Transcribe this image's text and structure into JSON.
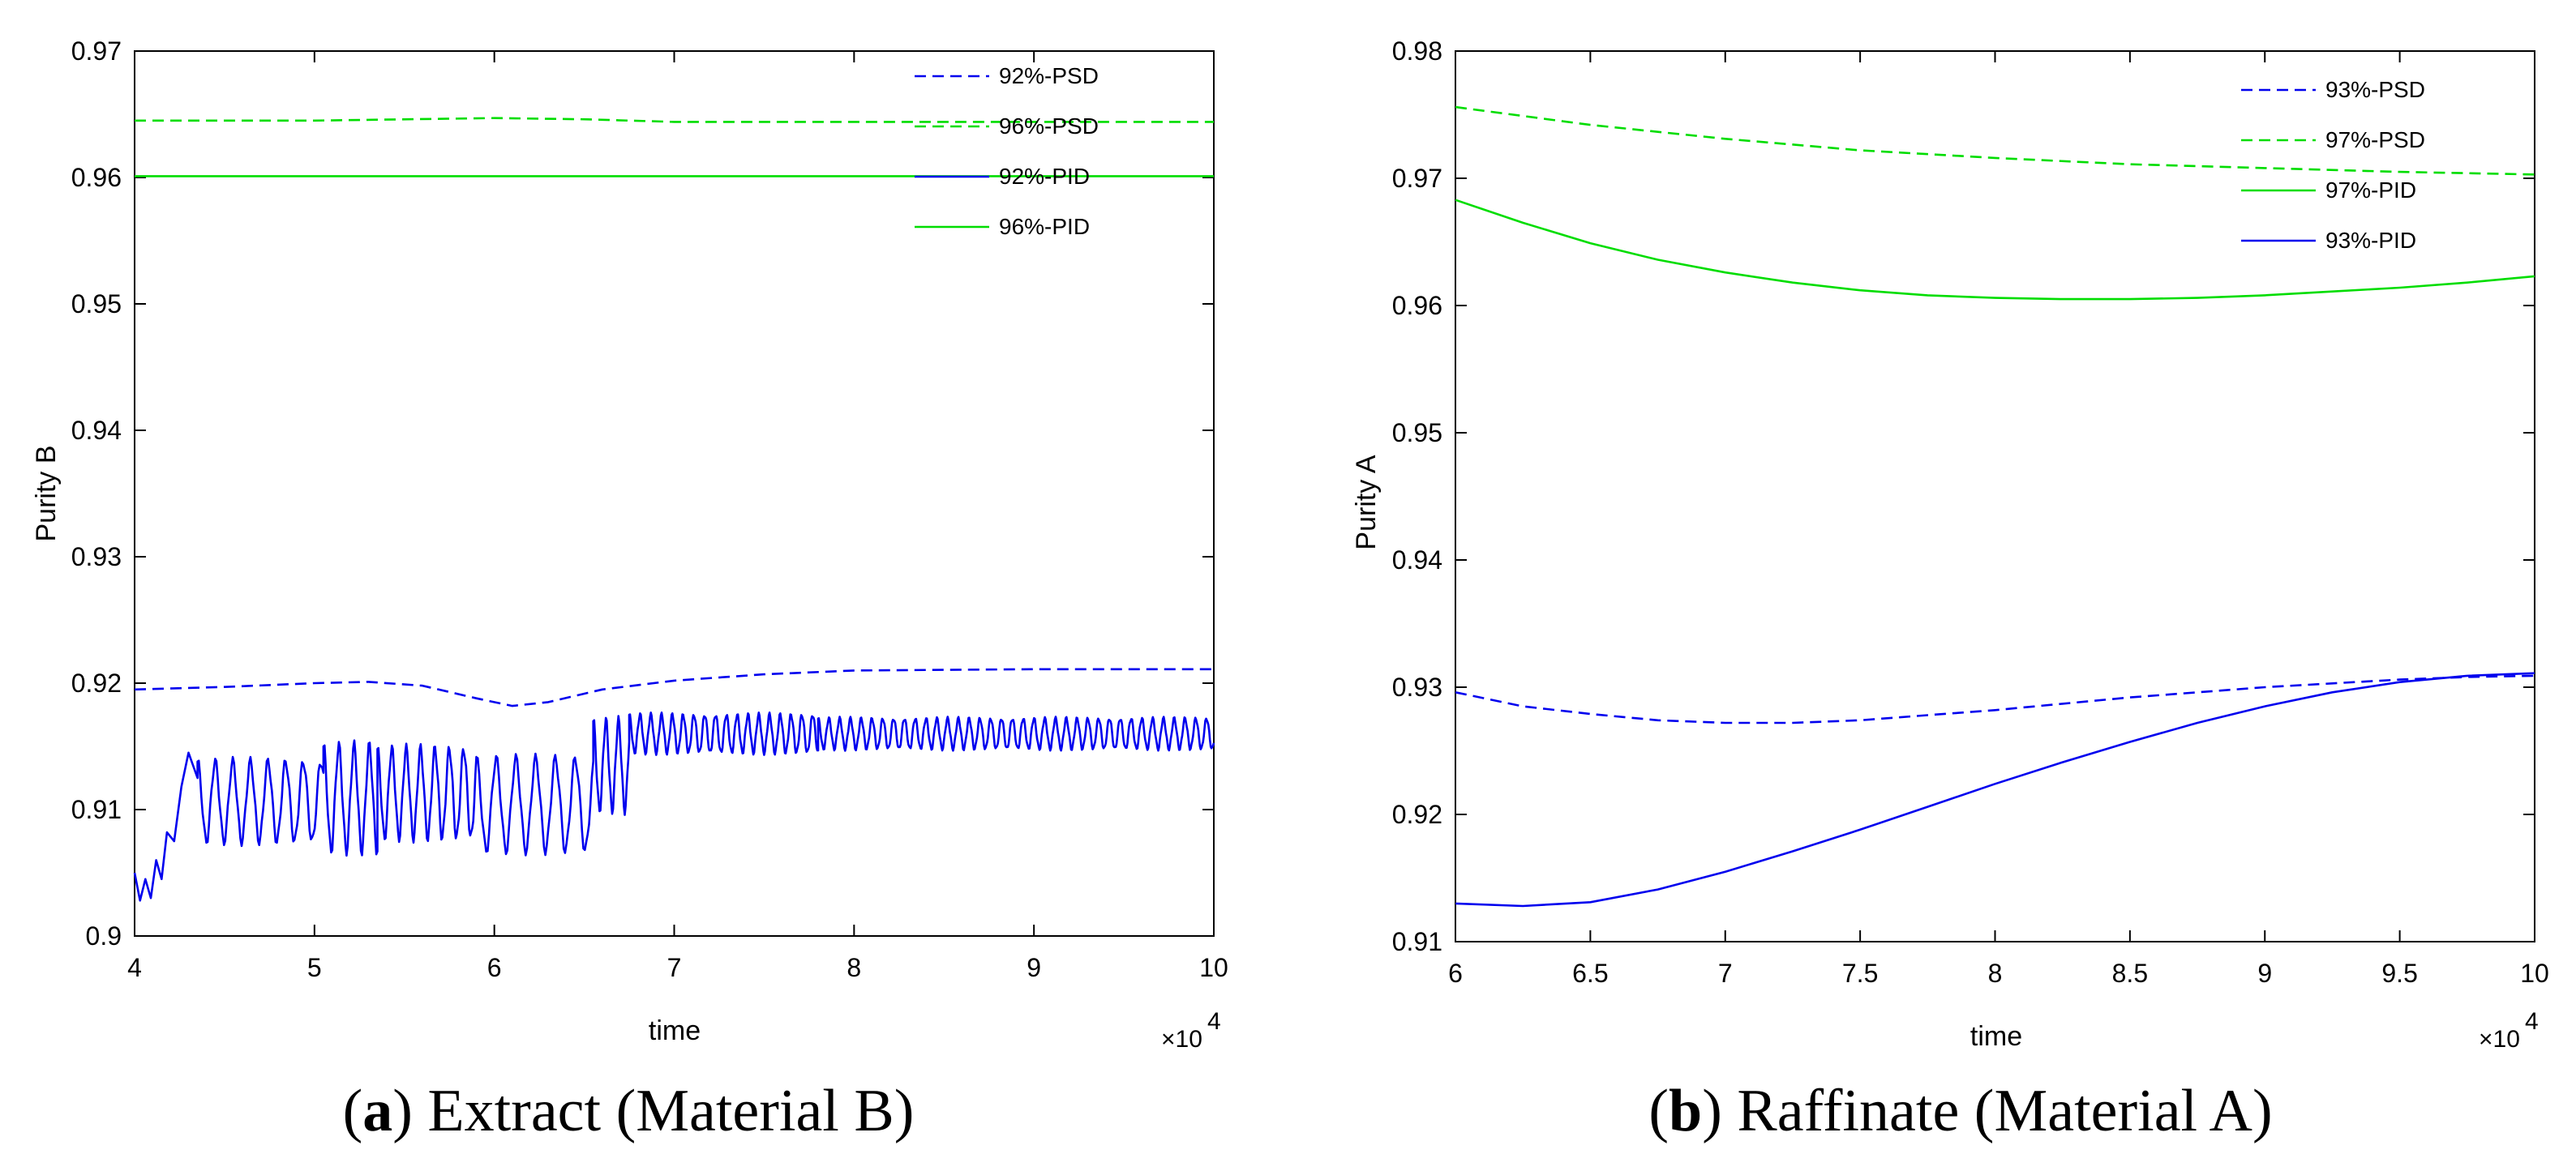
{
  "chart_data": [
    {
      "type": "line",
      "caption": {
        "letter": "a",
        "text": "Extract (Material B)"
      },
      "xlabel": "time",
      "ylabel": "Purity B",
      "x_multiplier": "×10",
      "x_exponent": "4",
      "xlim": [
        4,
        10
      ],
      "ylim": [
        0.9,
        0.97
      ],
      "xticks": [
        "4",
        "5",
        "6",
        "7",
        "8",
        "9",
        "10"
      ],
      "yticks": [
        "0.9",
        "0.91",
        "0.92",
        "0.93",
        "0.94",
        "0.95",
        "0.96",
        "0.97"
      ],
      "legend": [
        {
          "label": "92%-PSD",
          "color": "#0000ee",
          "dash": true
        },
        {
          "label": "96%-PSD",
          "color": "#00dd00",
          "dash": true
        },
        {
          "label": "92%-PID",
          "color": "#0000ee",
          "dash": false
        },
        {
          "label": "96%-PID",
          "color": "#00dd00",
          "dash": false
        }
      ],
      "series": [
        {
          "name": "92%-PSD",
          "color": "#0000ee",
          "dash": true,
          "x": [
            4.0,
            4.5,
            5.0,
            5.3,
            5.6,
            5.9,
            6.1,
            6.3,
            6.6,
            7.0,
            7.5,
            8.0,
            9.0,
            10.0
          ],
          "y": [
            0.9195,
            0.9197,
            0.92,
            0.9201,
            0.9198,
            0.9188,
            0.9182,
            0.9185,
            0.9195,
            0.9202,
            0.9207,
            0.921,
            0.9211,
            0.9211
          ]
        },
        {
          "name": "96%-PSD",
          "color": "#00dd00",
          "dash": true,
          "x": [
            4.0,
            5.0,
            6.0,
            6.5,
            7.0,
            8.0,
            9.0,
            10.0
          ],
          "y": [
            0.9645,
            0.9645,
            0.9647,
            0.9646,
            0.9644,
            0.9644,
            0.9644,
            0.9644
          ]
        },
        {
          "name": "92%-PID",
          "color": "#0000ee",
          "dash": false,
          "x": [
            4.0,
            4.03,
            4.06,
            4.09,
            4.12,
            4.15,
            4.18,
            4.22,
            4.26,
            4.3,
            4.35
          ],
          "y": [
            0.905,
            0.9028,
            0.9045,
            0.903,
            0.906,
            0.9045,
            0.9082,
            0.9075,
            0.9118,
            0.9145,
            0.9125
          ],
          "segments": [
            {
              "x_start": 4.35,
              "x_end": 5.05,
              "low": 0.9075,
              "high": 0.9138,
              "period": 0.098
            },
            {
              "x_start": 5.05,
              "x_end": 5.35,
              "low": 0.9068,
              "high": 0.915,
              "period": 0.085
            },
            {
              "x_start": 5.35,
              "x_end": 5.9,
              "low": 0.9078,
              "high": 0.9148,
              "period": 0.08
            },
            {
              "x_start": 5.9,
              "x_end": 6.55,
              "low": 0.9068,
              "high": 0.914,
              "period": 0.11
            },
            {
              "x_start": 6.55,
              "x_end": 6.75,
              "low": 0.91,
              "high": 0.917,
              "period": 0.07
            },
            {
              "x_start": 6.75,
              "x_end": 7.8,
              "low": 0.9145,
              "high": 0.9175,
              "period": 0.06
            },
            {
              "x_start": 7.8,
              "x_end": 10.0,
              "low": 0.9148,
              "high": 0.9172,
              "period": 0.06
            }
          ]
        },
        {
          "name": "96%-PID",
          "color": "#00dd00",
          "dash": false,
          "x": [
            4.0,
            10.0
          ],
          "y": [
            0.9601,
            0.9601
          ]
        }
      ]
    },
    {
      "type": "line",
      "caption": {
        "letter": "b",
        "text": "Raffinate (Material A)"
      },
      "xlabel": "time",
      "ylabel": "Purity A",
      "x_multiplier": "×10",
      "x_exponent": "4",
      "xlim": [
        6,
        10
      ],
      "ylim": [
        0.91,
        0.98
      ],
      "xticks": [
        "6",
        "6.5",
        "7",
        "7.5",
        "8",
        "8.5",
        "9",
        "9.5",
        "10"
      ],
      "yticks": [
        "0.91",
        "0.92",
        "0.93",
        "0.94",
        "0.95",
        "0.96",
        "0.97",
        "0.98"
      ],
      "legend": [
        {
          "label": "93%-PSD",
          "color": "#0000ee",
          "dash": true
        },
        {
          "label": "97%-PSD",
          "color": "#00dd00",
          "dash": true
        },
        {
          "label": "97%-PID",
          "color": "#00dd00",
          "dash": false
        },
        {
          "label": "93%-PID",
          "color": "#0000ee",
          "dash": false
        }
      ],
      "series": [
        {
          "name": "93%-PSD",
          "color": "#0000ee",
          "dash": true,
          "x": [
            6.0,
            6.25,
            6.5,
            6.75,
            7.0,
            7.25,
            7.5,
            7.75,
            8.0,
            8.25,
            8.5,
            8.75,
            9.0,
            9.25,
            9.5,
            9.75,
            10.0
          ],
          "y": [
            0.9296,
            0.9285,
            0.9279,
            0.9274,
            0.9272,
            0.9272,
            0.9274,
            0.9278,
            0.9282,
            0.9287,
            0.9292,
            0.9296,
            0.93,
            0.9303,
            0.9306,
            0.9308,
            0.9309
          ]
        },
        {
          "name": "97%-PSD",
          "color": "#00dd00",
          "dash": true,
          "x": [
            6.0,
            6.5,
            7.0,
            7.5,
            8.0,
            8.5,
            9.0,
            9.5,
            10.0
          ],
          "y": [
            0.9756,
            0.9742,
            0.9731,
            0.9722,
            0.9716,
            0.9711,
            0.9708,
            0.9705,
            0.9703
          ]
        },
        {
          "name": "97%-PID",
          "color": "#00dd00",
          "dash": false,
          "x": [
            6.0,
            6.25,
            6.5,
            6.75,
            7.0,
            7.25,
            7.5,
            7.75,
            8.0,
            8.25,
            8.5,
            8.75,
            9.0,
            9.25,
            9.5,
            9.75,
            10.0
          ],
          "y": [
            0.9683,
            0.9665,
            0.9649,
            0.9636,
            0.9626,
            0.9618,
            0.9612,
            0.9608,
            0.9606,
            0.9605,
            0.9605,
            0.9606,
            0.9608,
            0.9611,
            0.9614,
            0.9618,
            0.9623
          ]
        },
        {
          "name": "93%-PID",
          "color": "#0000ee",
          "dash": false,
          "x": [
            6.0,
            6.25,
            6.5,
            6.75,
            7.0,
            7.25,
            7.5,
            7.75,
            8.0,
            8.25,
            8.5,
            8.75,
            9.0,
            9.25,
            9.5,
            9.75,
            10.0
          ],
          "y": [
            0.913,
            0.9128,
            0.9131,
            0.9141,
            0.9155,
            0.9171,
            0.9188,
            0.9206,
            0.9224,
            0.9241,
            0.9257,
            0.9272,
            0.9285,
            0.9296,
            0.9304,
            0.9309,
            0.9311
          ]
        }
      ]
    }
  ]
}
